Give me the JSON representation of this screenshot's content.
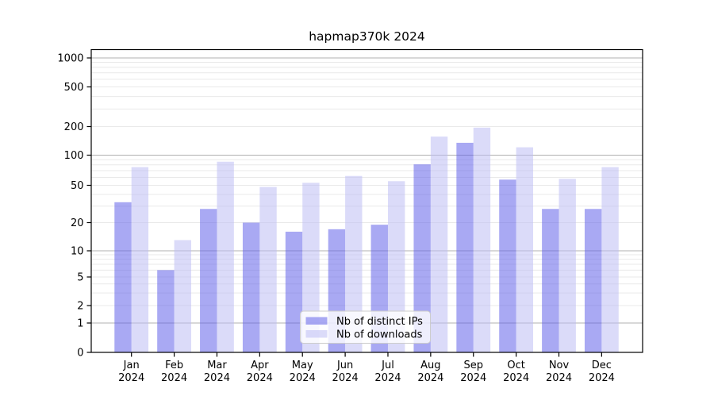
{
  "title": "hapmap370k 2024",
  "chart_data": {
    "type": "bar",
    "title": "hapmap370k 2024",
    "categories": [
      "Jan",
      "Feb",
      "Mar",
      "Apr",
      "May",
      "Jun",
      "Jul",
      "Aug",
      "Sep",
      "Oct",
      "Nov",
      "Dec"
    ],
    "category_year": "2024",
    "series": [
      {
        "name": "Nb of distinct IPs",
        "color": "#6363e9",
        "apparent_color": "#a9a9f3",
        "alpha": 0.55,
        "values": [
          33,
          6,
          28,
          20,
          16,
          17,
          19,
          81,
          135,
          57,
          28,
          28
        ]
      },
      {
        "name": "Nb of downloads",
        "color": "#bebef4",
        "apparent_color": "#dcdcf8",
        "alpha": 0.55,
        "values": [
          76,
          13,
          86,
          48,
          53,
          62,
          55,
          157,
          195,
          121,
          58,
          76
        ]
      }
    ],
    "yscale": "symlog",
    "ylim": [
      0,
      1230
    ],
    "y_ticks": [
      0,
      1,
      2,
      5,
      10,
      20,
      50,
      100,
      200,
      500,
      1000
    ],
    "grid": "on",
    "major_grid_color": "#b0b0b0",
    "minor_grid_color": "#e9e9e9",
    "axis_color": "#000000",
    "legend_position": "lower center"
  }
}
